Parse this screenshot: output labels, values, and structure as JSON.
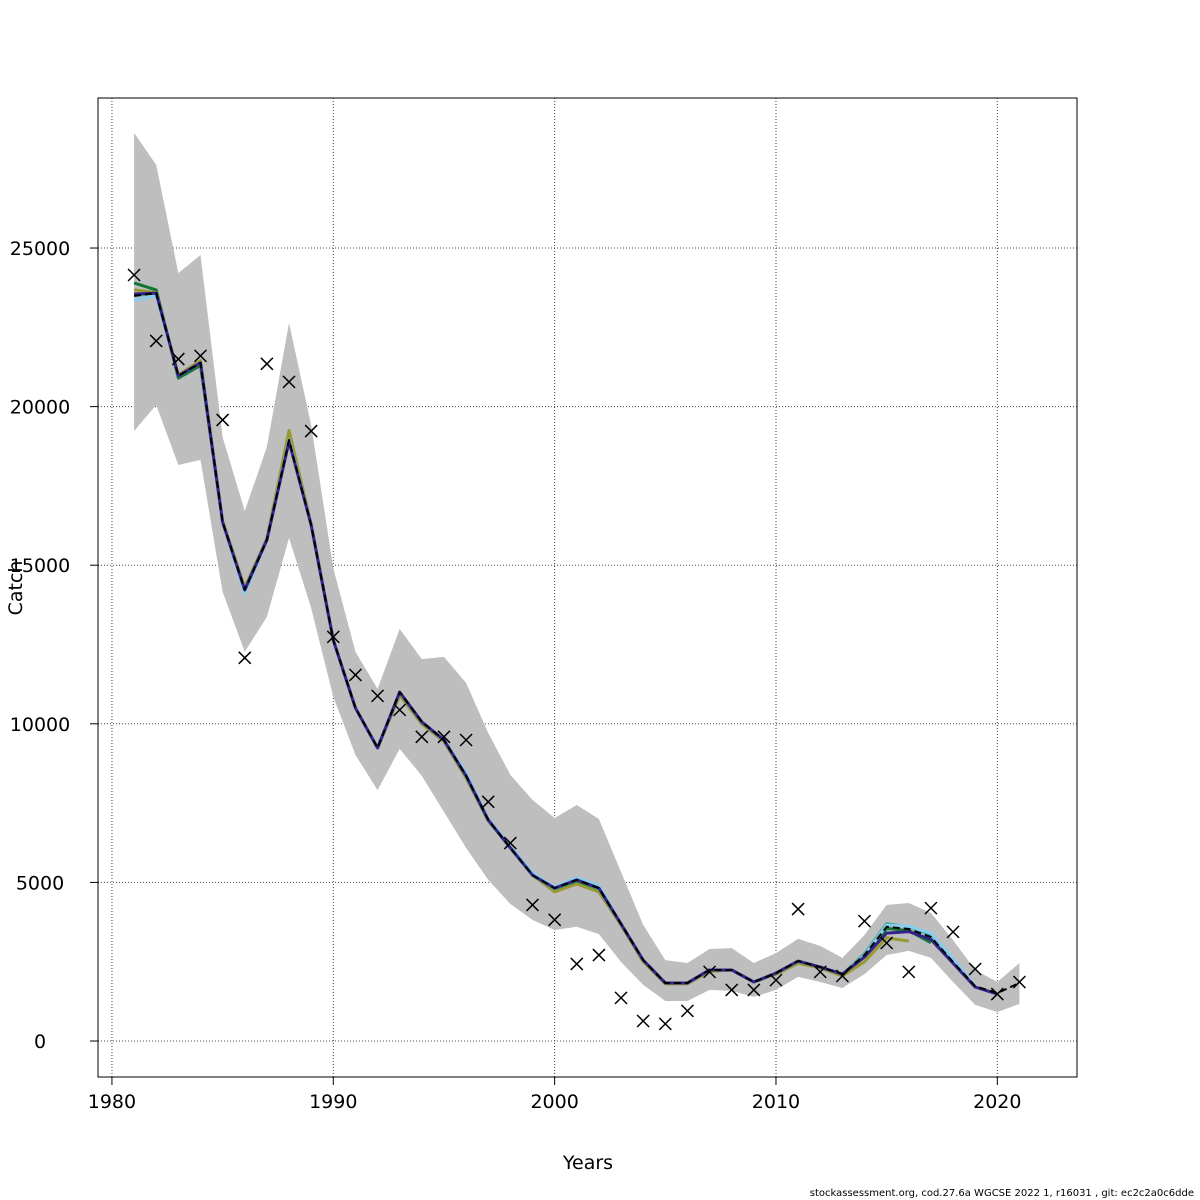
{
  "chart_data": {
    "type": "line",
    "title": "",
    "xlabel": "Years",
    "ylabel": "Catch",
    "xlim": [
      1979.37,
      2023.6
    ],
    "ylim": [
      -1135,
      29730
    ],
    "x_ticks": [
      1980,
      1990,
      2000,
      2010,
      2020
    ],
    "y_ticks": [
      0,
      5000,
      10000,
      15000,
      20000,
      25000
    ],
    "grid": true,
    "legend": "none",
    "years": [
      1981,
      1982,
      1983,
      1984,
      1985,
      1986,
      1987,
      1988,
      1989,
      1990,
      1991,
      1992,
      1993,
      1994,
      1995,
      1996,
      1997,
      1998,
      1999,
      2000,
      2001,
      2002,
      2003,
      2004,
      2005,
      2006,
      2007,
      2008,
      2009,
      2010,
      2011,
      2012,
      2013,
      2014,
      2015,
      2016,
      2017,
      2018,
      2019,
      2020,
      2021
    ],
    "observed": {
      "marker": "x",
      "color": "#000000",
      "values": [
        24150,
        22070,
        21500,
        21600,
        19580,
        12080,
        21350,
        20780,
        19230,
        12740,
        11540,
        10880,
        10440,
        9590,
        9590,
        9490,
        7540,
        6240,
        4290,
        3820,
        2430,
        2710,
        1360,
        630,
        540,
        950,
        2180,
        1610,
        1610,
        1920,
        4160,
        2180,
        2050,
        3780,
        3090,
        2180,
        4190,
        3440,
        2270,
        1480,
        1860
      ]
    },
    "band": {
      "color": "#bebebe",
      "upper": [
        28630,
        27620,
        24210,
        24780,
        19040,
        16710,
        18730,
        22640,
        19420,
        14910,
        12270,
        11100,
        12990,
        12040,
        12110,
        11290,
        9710,
        8390,
        7600,
        7030,
        7440,
        7000,
        5330,
        3660,
        2550,
        2460,
        2900,
        2930,
        2460,
        2770,
        3220,
        3000,
        2620,
        3340,
        4290,
        4350,
        4040,
        3180,
        2240,
        1860,
        2460
      ],
      "lower": [
        19230,
        20050,
        18160,
        18320,
        14160,
        12270,
        13370,
        15860,
        13650,
        10850,
        9020,
        7910,
        9210,
        8360,
        7220,
        6090,
        5080,
        4320,
        3820,
        3500,
        3600,
        3370,
        2490,
        1770,
        1260,
        1260,
        1610,
        1580,
        1390,
        1610,
        2020,
        1860,
        1670,
        2110,
        2710,
        2840,
        2620,
        1860,
        1140,
        910,
        1170
      ]
    },
    "series": [
      {
        "color": "#117733",
        "end_year": 2017,
        "values": [
          23900,
          23680,
          20900,
          21300,
          16360,
          14220,
          15800,
          19100,
          16270,
          12640,
          10500,
          9240,
          10900,
          10000,
          9450,
          8300,
          6950,
          6090,
          5230,
          4750,
          5000,
          4750,
          3690,
          2550,
          1830,
          1830,
          2200,
          2240,
          1860,
          2140,
          2500,
          2330,
          2110,
          2650,
          3550,
          3480,
          3100
        ]
      },
      {
        "color": "#999933",
        "end_year": 2016,
        "values": [
          23680,
          23600,
          21000,
          21450,
          16400,
          14300,
          15850,
          19250,
          16300,
          12640,
          10500,
          9240,
          10900,
          10000,
          9450,
          8300,
          6950,
          6090,
          5230,
          4700,
          4950,
          4700,
          3650,
          2500,
          1800,
          1800,
          2200,
          2240,
          1860,
          2100,
          2450,
          2300,
          2050,
          2500,
          3250,
          3150
        ]
      },
      {
        "color": "#44AA99",
        "end_year": 2018,
        "values": [
          23500,
          23580,
          20970,
          21380,
          16360,
          14220,
          15800,
          18950,
          16270,
          12640,
          10500,
          9240,
          11000,
          10060,
          9490,
          8360,
          6970,
          6090,
          5230,
          4800,
          5080,
          4800,
          3690,
          2550,
          1830,
          1830,
          2240,
          2240,
          1860,
          2140,
          2520,
          2330,
          2110,
          2750,
          3700,
          3600,
          3350,
          2550
        ]
      },
      {
        "color": "#88CCEE",
        "end_year": 2019,
        "values": [
          23350,
          23500,
          20970,
          21380,
          16360,
          14100,
          15800,
          18950,
          16270,
          12640,
          10500,
          9240,
          11000,
          10060,
          9490,
          8450,
          7000,
          6150,
          5300,
          4850,
          5150,
          4900,
          3700,
          2550,
          1830,
          1830,
          2240,
          2240,
          1860,
          2140,
          2520,
          2330,
          2110,
          2700,
          3650,
          3620,
          3400,
          2600,
          1720
        ]
      },
      {
        "color": "#332288",
        "end_year": 2020,
        "values": [
          23550,
          23580,
          20970,
          21380,
          16360,
          14220,
          15800,
          18900,
          16270,
          12640,
          10500,
          9240,
          11000,
          10060,
          9490,
          8360,
          6970,
          6090,
          5230,
          4820,
          5080,
          4820,
          3690,
          2550,
          1830,
          1830,
          2240,
          2240,
          1860,
          2140,
          2520,
          2330,
          2110,
          2650,
          3400,
          3450,
          3200,
          2450,
          1700,
          1480
        ]
      },
      {
        "color": "#000000",
        "dashed": true,
        "end_year": 2021,
        "values": [
          23490,
          23580,
          20970,
          21380,
          16360,
          14220,
          15800,
          18950,
          16270,
          12640,
          10500,
          9240,
          11000,
          10060,
          9490,
          8360,
          6970,
          6090,
          5230,
          4820,
          5080,
          4820,
          3690,
          2550,
          1830,
          1830,
          2240,
          2240,
          1860,
          2140,
          2520,
          2330,
          2110,
          2710,
          3600,
          3530,
          3280,
          2490,
          1730,
          1510,
          1830
        ]
      }
    ]
  },
  "footer": "stockassessment.org, cod.27.6a  WGCSE  2022  1, r16031 , git: ec2c2a0c6dde"
}
